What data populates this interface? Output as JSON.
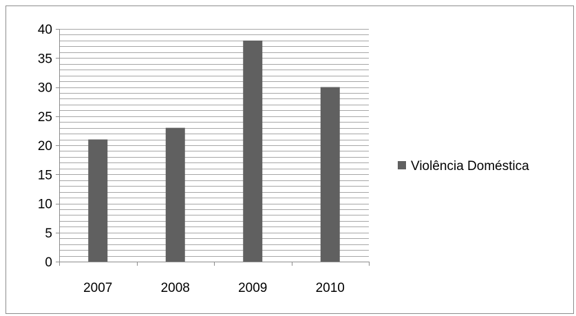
{
  "chart_data": {
    "type": "bar",
    "title": "",
    "xlabel": "",
    "ylabel": "",
    "categories": [
      "2007",
      "2008",
      "2009",
      "2010"
    ],
    "series": [
      {
        "name": "Violência Doméstica",
        "values": [
          21,
          23,
          38,
          30
        ]
      }
    ],
    "ylim": [
      0,
      40
    ],
    "ytick_step": 5,
    "ytick_labels": [
      "0",
      "5",
      "10",
      "15",
      "20",
      "25",
      "30",
      "35",
      "40"
    ],
    "minor_gridline_step": 1,
    "grid": true,
    "legend_position": "right",
    "colors": {
      "bar": "#606060",
      "gridline": "#a6a6a6",
      "axis": "#8c8c8c",
      "frame": "#8c8c8c"
    }
  }
}
